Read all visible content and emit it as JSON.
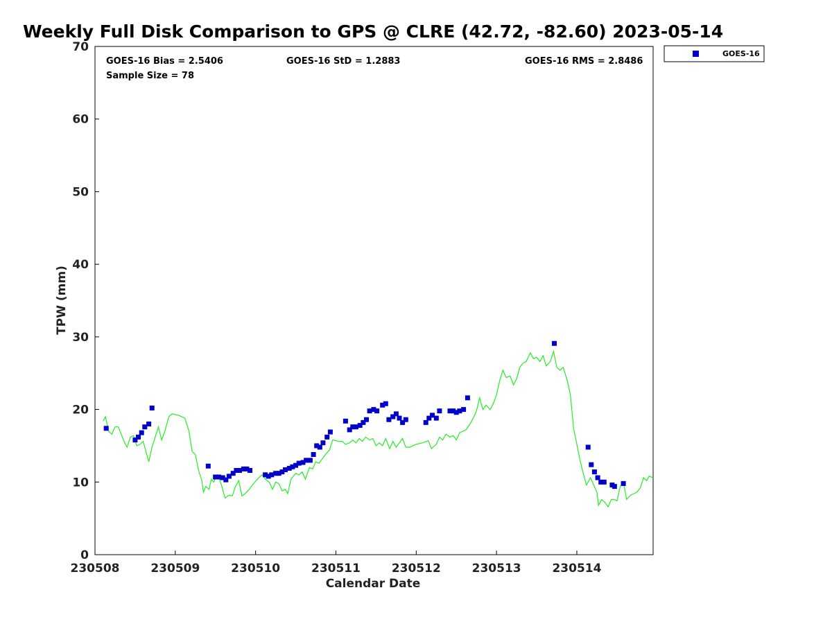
{
  "chart_data": {
    "type": "scatter",
    "title": "Weekly Full Disk Comparison to GPS @ CLRE (42.72, -82.60) 2023-05-14",
    "xlabel": "Calendar Date",
    "ylabel": "TPW (mm)",
    "x_tick_labels": [
      "230508",
      "230509",
      "230510",
      "230511",
      "230512",
      "230513",
      "230514"
    ],
    "x_ticks": [
      0,
      1,
      2,
      3,
      4,
      5,
      6
    ],
    "xlim": [
      0,
      6.95
    ],
    "ylim": [
      0,
      70
    ],
    "y_ticks": [
      0,
      10,
      20,
      30,
      40,
      50,
      60,
      70
    ],
    "y_tick_labels": [
      "0",
      "10",
      "20",
      "30",
      "40",
      "50",
      "60",
      "70"
    ],
    "grid": false,
    "legend_placement": "top-right, outside",
    "stats": {
      "bias": "GOES-16 Bias = 2.5406",
      "std": "GOES-16 StD = 1.2883",
      "rms": "GOES-16 RMS = 2.8486",
      "sample": "Sample Size = 78"
    },
    "series": [
      {
        "name": "GOES-16",
        "kind": "scatter",
        "marker": "square",
        "color": "#0000cc",
        "points": [
          [
            0.14,
            17.4
          ],
          [
            0.5,
            15.8
          ],
          [
            0.54,
            16.2
          ],
          [
            0.58,
            16.8
          ],
          [
            0.62,
            17.6
          ],
          [
            0.67,
            18.0
          ],
          [
            0.71,
            20.2
          ],
          [
            1.41,
            12.2
          ],
          [
            1.5,
            10.7
          ],
          [
            1.54,
            10.7
          ],
          [
            1.59,
            10.6
          ],
          [
            1.63,
            10.3
          ],
          [
            1.67,
            10.8
          ],
          [
            1.72,
            11.2
          ],
          [
            1.76,
            11.6
          ],
          [
            1.8,
            11.6
          ],
          [
            1.85,
            11.8
          ],
          [
            1.89,
            11.8
          ],
          [
            1.93,
            11.6
          ],
          [
            2.12,
            11.0
          ],
          [
            2.16,
            10.8
          ],
          [
            2.2,
            11.0
          ],
          [
            2.25,
            11.2
          ],
          [
            2.29,
            11.2
          ],
          [
            2.33,
            11.4
          ],
          [
            2.37,
            11.7
          ],
          [
            2.42,
            11.9
          ],
          [
            2.46,
            12.1
          ],
          [
            2.5,
            12.3
          ],
          [
            2.54,
            12.6
          ],
          [
            2.59,
            12.7
          ],
          [
            2.63,
            13.0
          ],
          [
            2.68,
            13.0
          ],
          [
            2.72,
            13.8
          ],
          [
            2.76,
            15.0
          ],
          [
            2.8,
            14.8
          ],
          [
            2.84,
            15.4
          ],
          [
            2.89,
            16.2
          ],
          [
            2.93,
            16.9
          ],
          [
            3.12,
            18.4
          ],
          [
            3.17,
            17.2
          ],
          [
            3.21,
            17.6
          ],
          [
            3.25,
            17.6
          ],
          [
            3.3,
            17.8
          ],
          [
            3.34,
            18.2
          ],
          [
            3.38,
            18.6
          ],
          [
            3.42,
            19.8
          ],
          [
            3.47,
            20.0
          ],
          [
            3.51,
            19.8
          ],
          [
            3.58,
            20.6
          ],
          [
            3.62,
            20.8
          ],
          [
            3.66,
            18.6
          ],
          [
            3.71,
            19.0
          ],
          [
            3.75,
            19.4
          ],
          [
            3.79,
            18.8
          ],
          [
            3.83,
            18.2
          ],
          [
            3.87,
            18.6
          ],
          [
            4.12,
            18.2
          ],
          [
            4.16,
            18.8
          ],
          [
            4.2,
            19.2
          ],
          [
            4.25,
            18.8
          ],
          [
            4.29,
            19.8
          ],
          [
            4.42,
            19.8
          ],
          [
            4.46,
            19.8
          ],
          [
            4.5,
            19.6
          ],
          [
            4.54,
            19.8
          ],
          [
            4.59,
            20.0
          ],
          [
            4.64,
            21.6
          ],
          [
            5.72,
            29.1
          ],
          [
            6.14,
            14.8
          ],
          [
            6.18,
            12.4
          ],
          [
            6.22,
            11.4
          ],
          [
            6.26,
            10.6
          ],
          [
            6.3,
            10.0
          ],
          [
            6.34,
            10.0
          ],
          [
            6.44,
            9.6
          ],
          [
            6.47,
            9.4
          ],
          [
            6.58,
            9.8
          ]
        ]
      },
      {
        "kind": "line",
        "color": "#22ee22",
        "points": [
          [
            0.1,
            18.4
          ],
          [
            0.13,
            19.0
          ],
          [
            0.17,
            17.0
          ],
          [
            0.21,
            16.6
          ],
          [
            0.25,
            17.6
          ],
          [
            0.29,
            17.6
          ],
          [
            0.33,
            16.5
          ],
          [
            0.37,
            15.4
          ],
          [
            0.4,
            14.8
          ],
          [
            0.44,
            16.2
          ],
          [
            0.48,
            16.4
          ],
          [
            0.52,
            15.0
          ],
          [
            0.56,
            15.2
          ],
          [
            0.6,
            15.6
          ],
          [
            0.64,
            14.0
          ],
          [
            0.67,
            12.8
          ],
          [
            0.71,
            14.8
          ],
          [
            0.75,
            16.2
          ],
          [
            0.79,
            17.6
          ],
          [
            0.83,
            15.8
          ],
          [
            0.87,
            17.0
          ],
          [
            0.92,
            19.0
          ],
          [
            0.96,
            19.4
          ],
          [
            1.04,
            19.2
          ],
          [
            1.12,
            18.8
          ],
          [
            1.17,
            17.0
          ],
          [
            1.21,
            14.2
          ],
          [
            1.25,
            13.8
          ],
          [
            1.29,
            11.6
          ],
          [
            1.33,
            10.2
          ],
          [
            1.35,
            8.6
          ],
          [
            1.38,
            9.4
          ],
          [
            1.42,
            9.0
          ],
          [
            1.45,
            10.4
          ],
          [
            1.48,
            10.0
          ],
          [
            1.52,
            11.0
          ],
          [
            1.55,
            10.4
          ],
          [
            1.58,
            9.4
          ],
          [
            1.62,
            7.8
          ],
          [
            1.67,
            8.2
          ],
          [
            1.71,
            8.1
          ],
          [
            1.75,
            9.4
          ],
          [
            1.79,
            10.2
          ],
          [
            1.83,
            8.1
          ],
          [
            1.87,
            8.4
          ],
          [
            1.92,
            9.0
          ],
          [
            1.96,
            9.6
          ],
          [
            2.04,
            10.6
          ],
          [
            2.08,
            11.0
          ],
          [
            2.12,
            10.4
          ],
          [
            2.17,
            10.0
          ],
          [
            2.21,
            9.0
          ],
          [
            2.25,
            10.0
          ],
          [
            2.29,
            9.8
          ],
          [
            2.33,
            8.8
          ],
          [
            2.37,
            9.0
          ],
          [
            2.4,
            8.4
          ],
          [
            2.44,
            10.4
          ],
          [
            2.5,
            11.2
          ],
          [
            2.54,
            11.0
          ],
          [
            2.58,
            11.4
          ],
          [
            2.62,
            10.4
          ],
          [
            2.67,
            12.0
          ],
          [
            2.71,
            11.8
          ],
          [
            2.75,
            12.8
          ],
          [
            2.79,
            12.6
          ],
          [
            2.83,
            13.2
          ],
          [
            2.87,
            13.8
          ],
          [
            2.92,
            14.4
          ],
          [
            2.96,
            15.8
          ],
          [
            3.04,
            15.6
          ],
          [
            3.08,
            15.6
          ],
          [
            3.12,
            15.2
          ],
          [
            3.17,
            15.4
          ],
          [
            3.21,
            15.8
          ],
          [
            3.25,
            15.4
          ],
          [
            3.29,
            16.0
          ],
          [
            3.33,
            15.6
          ],
          [
            3.37,
            16.2
          ],
          [
            3.42,
            15.8
          ],
          [
            3.46,
            16.0
          ],
          [
            3.5,
            15.0
          ],
          [
            3.54,
            15.4
          ],
          [
            3.58,
            15.0
          ],
          [
            3.62,
            16.0
          ],
          [
            3.67,
            14.6
          ],
          [
            3.71,
            15.6
          ],
          [
            3.75,
            14.8
          ],
          [
            3.79,
            15.4
          ],
          [
            3.83,
            16.0
          ],
          [
            3.87,
            14.8
          ],
          [
            3.92,
            14.8
          ],
          [
            4.0,
            15.2
          ],
          [
            4.08,
            15.4
          ],
          [
            4.15,
            15.7
          ],
          [
            4.19,
            14.6
          ],
          [
            4.25,
            15.2
          ],
          [
            4.29,
            16.2
          ],
          [
            4.33,
            15.8
          ],
          [
            4.37,
            16.6
          ],
          [
            4.42,
            16.2
          ],
          [
            4.46,
            16.4
          ],
          [
            4.5,
            15.8
          ],
          [
            4.54,
            16.8
          ],
          [
            4.58,
            17.0
          ],
          [
            4.62,
            17.2
          ],
          [
            4.67,
            18.0
          ],
          [
            4.71,
            18.8
          ],
          [
            4.75,
            19.8
          ],
          [
            4.79,
            21.6
          ],
          [
            4.83,
            20.0
          ],
          [
            4.87,
            20.6
          ],
          [
            4.92,
            20.0
          ],
          [
            4.96,
            20.8
          ],
          [
            5.0,
            22.0
          ],
          [
            5.04,
            24.0
          ],
          [
            5.08,
            25.4
          ],
          [
            5.12,
            24.4
          ],
          [
            5.17,
            24.6
          ],
          [
            5.21,
            23.4
          ],
          [
            5.25,
            24.2
          ],
          [
            5.29,
            25.8
          ],
          [
            5.33,
            26.4
          ],
          [
            5.37,
            26.6
          ],
          [
            5.42,
            27.8
          ],
          [
            5.46,
            27.0
          ],
          [
            5.5,
            27.2
          ],
          [
            5.54,
            26.6
          ],
          [
            5.58,
            27.4
          ],
          [
            5.62,
            26.0
          ],
          [
            5.67,
            26.6
          ],
          [
            5.71,
            28.0
          ],
          [
            5.75,
            25.8
          ],
          [
            5.79,
            25.4
          ],
          [
            5.83,
            25.8
          ],
          [
            5.88,
            24.0
          ],
          [
            5.92,
            22.0
          ],
          [
            5.96,
            17.4
          ],
          [
            6.0,
            15.2
          ],
          [
            6.04,
            13.0
          ],
          [
            6.08,
            11.2
          ],
          [
            6.12,
            9.6
          ],
          [
            6.17,
            10.6
          ],
          [
            6.21,
            9.6
          ],
          [
            6.25,
            8.6
          ],
          [
            6.27,
            6.8
          ],
          [
            6.31,
            7.6
          ],
          [
            6.35,
            7.2
          ],
          [
            6.39,
            6.6
          ],
          [
            6.43,
            7.6
          ],
          [
            6.47,
            7.6
          ],
          [
            6.5,
            7.4
          ],
          [
            6.54,
            9.4
          ],
          [
            6.58,
            10.0
          ],
          [
            6.62,
            7.6
          ],
          [
            6.67,
            8.2
          ],
          [
            6.71,
            8.4
          ],
          [
            6.75,
            8.6
          ],
          [
            6.79,
            9.2
          ],
          [
            6.83,
            10.6
          ],
          [
            6.87,
            10.2
          ],
          [
            6.9,
            10.8
          ],
          [
            6.95,
            10.6
          ]
        ]
      }
    ]
  }
}
